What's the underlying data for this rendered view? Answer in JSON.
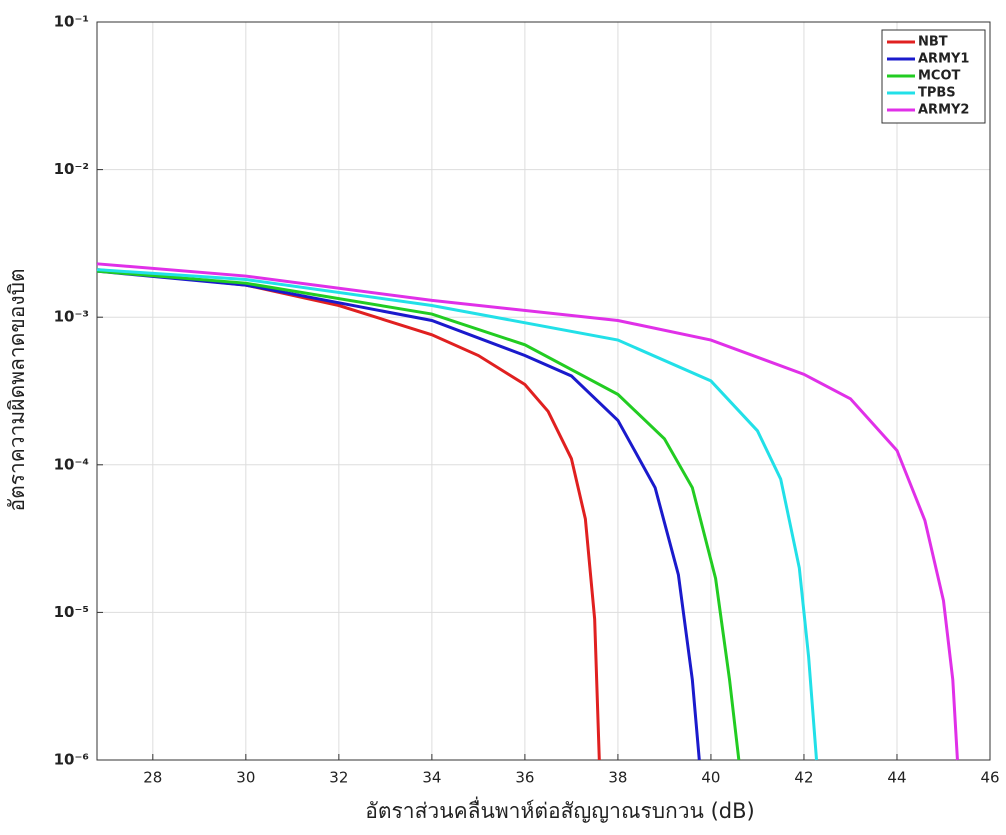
{
  "chart_data": {
    "type": "line",
    "xlabel": "อัตราส่วนคลื่นพาห์ต่อสัญญาณรบกวน (dB)",
    "ylabel": "อัตราความผิดพลาดของบิต",
    "log_y": true,
    "grid": true,
    "legend_position": "upper-right",
    "xlim": [
      26.8,
      46
    ],
    "xticks": [
      28,
      30,
      32,
      34,
      36,
      38,
      40,
      42,
      44,
      46
    ],
    "ylim": [
      1e-06,
      0.1
    ],
    "yticks": [
      {
        "value": 1e-06,
        "label": "10⁻⁶"
      },
      {
        "value": 1e-05,
        "label": "10⁻⁵"
      },
      {
        "value": 0.0001,
        "label": "10⁻⁴"
      },
      {
        "value": 0.001,
        "label": "10⁻³"
      },
      {
        "value": 0.01,
        "label": "10⁻²"
      },
      {
        "value": 0.1,
        "label": "10⁻¹"
      }
    ],
    "series": [
      {
        "name": "NBT",
        "color": "#e02020",
        "x": [
          26.8,
          30,
          32,
          34,
          35,
          36,
          36.5,
          37,
          37.3,
          37.5,
          37.6
        ],
        "values": [
          0.0021,
          0.00165,
          0.0012,
          0.00076,
          0.00055,
          0.00035,
          0.00023,
          0.00011,
          4.3e-05,
          9e-06,
          1e-06
        ]
      },
      {
        "name": "ARMY1",
        "color": "#1a1acc",
        "x": [
          26.8,
          30,
          34,
          36,
          37,
          38,
          38.8,
          39.3,
          39.6,
          39.75
        ],
        "values": [
          0.00205,
          0.00165,
          0.00095,
          0.00055,
          0.0004,
          0.0002,
          7e-05,
          1.8e-05,
          3.5e-06,
          1e-06
        ]
      },
      {
        "name": "MCOT",
        "color": "#22cc22",
        "x": [
          26.8,
          30,
          34,
          36,
          38,
          39,
          39.6,
          40.1,
          40.4,
          40.6
        ],
        "values": [
          0.00205,
          0.0017,
          0.00105,
          0.00065,
          0.0003,
          0.00015,
          7e-05,
          1.7e-05,
          3.5e-06,
          1e-06
        ]
      },
      {
        "name": "TPBS",
        "color": "#22e0e8",
        "x": [
          26.8,
          30,
          34,
          38,
          40,
          41,
          41.5,
          41.9,
          42.1,
          42.27
        ],
        "values": [
          0.0021,
          0.0018,
          0.0012,
          0.0007,
          0.00037,
          0.00017,
          8e-05,
          2e-05,
          5e-06,
          1e-06
        ]
      },
      {
        "name": "ARMY2",
        "color": "#e030e8",
        "x": [
          26.8,
          30,
          34,
          38,
          40,
          42,
          43,
          44,
          44.6,
          45,
          45.2,
          45.3
        ],
        "values": [
          0.0023,
          0.0019,
          0.0013,
          0.00095,
          0.0007,
          0.00041,
          0.00028,
          0.000125,
          4.2e-05,
          1.2e-05,
          3.5e-06,
          1e-06
        ]
      }
    ]
  }
}
